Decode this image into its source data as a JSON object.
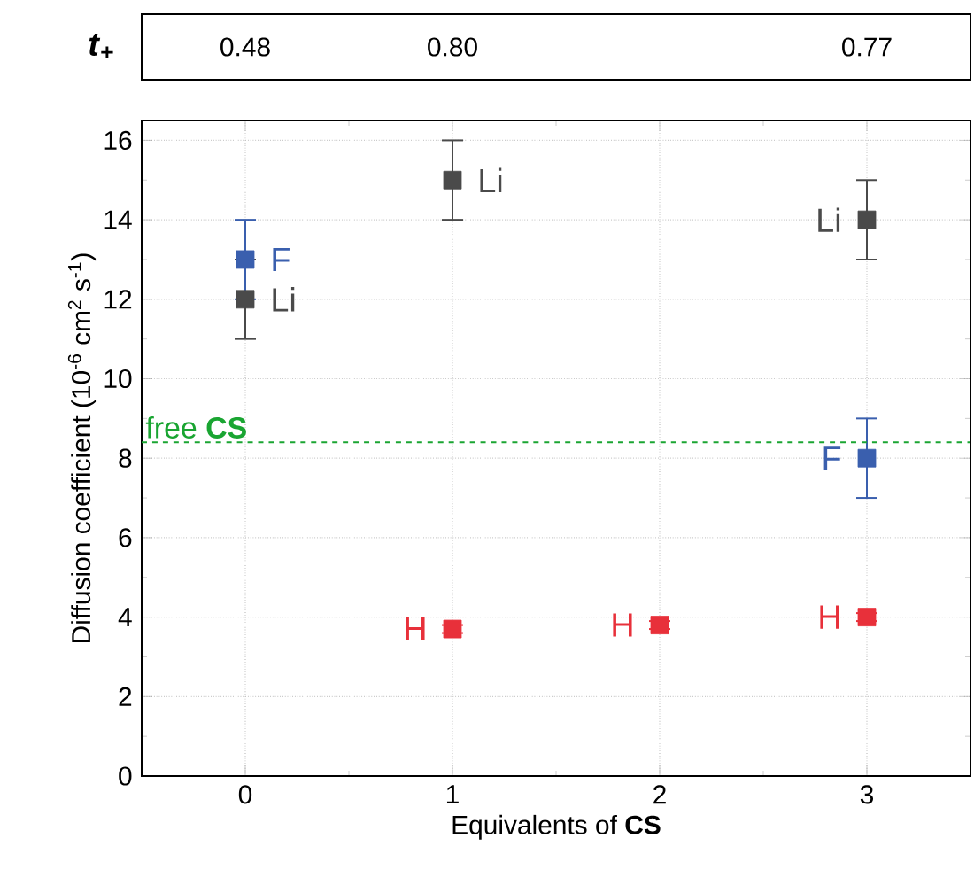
{
  "chart_data": {
    "type": "scatter",
    "xlabel": "Equivalents of **CS**",
    "ylabel": "Diffusion coefficient (10$^{-6}$ cm$^{2}$ s$^{-1}$)",
    "x": [
      0,
      1,
      2,
      3
    ],
    "series": [
      {
        "name": "Li",
        "color": "#4a4a4a",
        "values": [
          12,
          15,
          null,
          14
        ],
        "errors": [
          1,
          1,
          null,
          1
        ]
      },
      {
        "name": "F",
        "color": "#3a5fae",
        "values": [
          13,
          null,
          null,
          8
        ],
        "errors": [
          1,
          null,
          null,
          1
        ]
      },
      {
        "name": "H",
        "color": "#e8303a",
        "values": [
          null,
          3.7,
          3.8,
          4.0
        ],
        "errors": [
          null,
          0.1,
          0.1,
          0.1
        ]
      }
    ],
    "xlim": [
      -0.5,
      3.5
    ],
    "xticks": [
      0,
      1,
      2,
      3
    ],
    "ylim": [
      0,
      16.5
    ],
    "yticks": [
      0,
      2,
      4,
      6,
      8,
      10,
      12,
      14,
      16
    ],
    "grid": true,
    "marker": "square",
    "legend": false,
    "ref_lines": [
      {
        "axis": "y",
        "value": 8.4,
        "label": "free **CS**",
        "color": "#1aa532",
        "line_style": "dashed"
      }
    ],
    "annotations": [
      "*t*$_{+}$",
      "0.48",
      "0.80",
      "0.77"
    ]
  }
}
